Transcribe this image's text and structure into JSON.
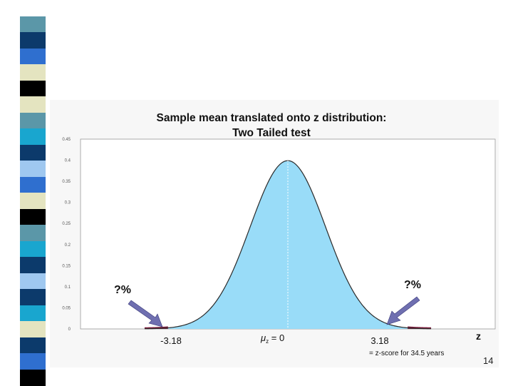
{
  "slide": {
    "page_number": "14",
    "stripe_colors": [
      "#ffffff",
      "#5b97a8",
      "#0c3a6b",
      "#2f6fcf",
      "#e4e4c0",
      "#000000",
      "#e4e4c0",
      "#5b97a8",
      "#19a6cf",
      "#0c3a6b",
      "#9fc8f0",
      "#2f6fcf",
      "#e4e4c0",
      "#000000",
      "#5b97a8",
      "#19a6cf",
      "#0c3a6b",
      "#9fc8f0",
      "#0c3a6b",
      "#19a6cf",
      "#e4e4c0",
      "#0c3a6b",
      "#2f6fcf",
      "#000000"
    ]
  },
  "chart_data": {
    "type": "area",
    "title_line1": "Sample mean translated onto z distribution:",
    "title_line2": "Two Tailed test",
    "ylim": [
      0,
      0.45
    ],
    "xlim": [
      -5.5,
      5.5
    ],
    "yticks": [
      "0",
      "0.05",
      "0.1",
      "0.15",
      "0.2",
      "0.25",
      "0.3",
      "0.35",
      "0.4",
      "0.45"
    ],
    "ytick_values": [
      0,
      0.05,
      0.1,
      0.15,
      0.2,
      0.25,
      0.3,
      0.35,
      0.4,
      0.45
    ],
    "x_axis_letter": "z",
    "critical_left": -3.18,
    "critical_right": 3.18,
    "label_left": "-3.18",
    "label_right": "3.18",
    "mean_symbol": "μ",
    "mean_subscript": "z",
    "mean_text": " = 0",
    "footnote": "= z-score for 34.5 years",
    "tail_label_left": "?%",
    "tail_label_right": "?%",
    "colors": {
      "fill": "#99dcf8",
      "tail": "#7a1c3c",
      "curve": "#2a2a2a",
      "arrow": "#6f6fb0",
      "grid": "#d8d8d8"
    }
  }
}
